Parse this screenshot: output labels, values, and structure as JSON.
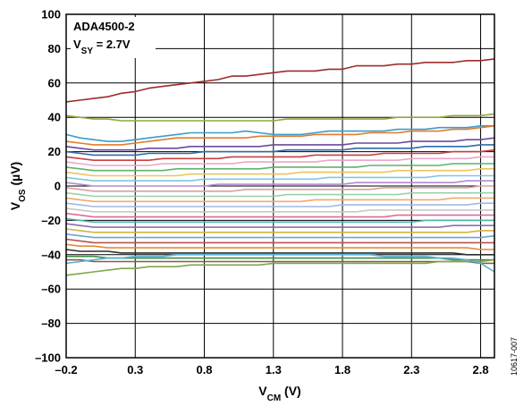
{
  "chart_data": {
    "type": "line",
    "title": "",
    "annotation": {
      "part": "ADA4500-2",
      "supply_label_main": "V",
      "supply_label_sub": "SY",
      "supply_label_rest": " = 2.7V"
    },
    "xlabel": {
      "main": "V",
      "sub": "CM",
      "rest": " (V)"
    },
    "ylabel": {
      "main": "V",
      "sub": "OS",
      "rest": " (µV)"
    },
    "xlim": [
      -0.2,
      2.9
    ],
    "ylim": [
      -100,
      100
    ],
    "xticks": [
      -0.2,
      0.3,
      0.8,
      1.3,
      1.8,
      2.3,
      2.8
    ],
    "xtick_labels": [
      "–0.2",
      "0.3",
      "0.8",
      "1.3",
      "1.8",
      "2.3",
      "2.8"
    ],
    "yticks": [
      -100,
      -80,
      -60,
      -40,
      -20,
      0,
      20,
      40,
      60,
      80,
      100
    ],
    "ytick_labels": [
      "–100",
      "–80",
      "–60",
      "–40",
      "–20",
      "0",
      "20",
      "40",
      "60",
      "80",
      "100"
    ],
    "grid": true,
    "x": [
      -0.2,
      -0.1,
      0.0,
      0.1,
      0.2,
      0.3,
      0.4,
      0.5,
      0.6,
      0.7,
      0.8,
      0.9,
      1.0,
      1.1,
      1.2,
      1.3,
      1.4,
      1.5,
      1.6,
      1.7,
      1.8,
      1.9,
      2.0,
      2.1,
      2.2,
      2.3,
      2.4,
      2.5,
      2.6,
      2.7,
      2.8,
      2.9
    ],
    "series": [
      {
        "color": "#9b2d2a",
        "values": [
          49,
          50,
          51,
          52,
          54,
          55,
          57,
          58,
          59,
          60,
          61,
          62,
          64,
          64,
          65,
          66,
          67,
          67,
          67,
          68,
          68,
          70,
          70,
          70,
          71,
          71,
          72,
          72,
          72,
          73,
          73,
          74
        ]
      },
      {
        "color": "#8bab3c",
        "values": [
          41,
          40,
          39,
          39,
          38,
          38,
          38,
          38,
          38,
          38,
          38,
          38,
          38,
          38,
          38,
          38,
          39,
          39,
          39,
          39,
          39,
          39,
          39,
          39,
          40,
          40,
          40,
          40,
          41,
          41,
          41,
          42
        ]
      },
      {
        "color": "#3a9cc9",
        "values": [
          30,
          28,
          27,
          26,
          26,
          27,
          28,
          29,
          30,
          31,
          31,
          31,
          31,
          32,
          31,
          30,
          30,
          30,
          31,
          32,
          32,
          32,
          32,
          32,
          33,
          33,
          33,
          34,
          34,
          34,
          35,
          35
        ]
      },
      {
        "color": "#e37b2c",
        "values": [
          26,
          25,
          24,
          24,
          24,
          25,
          26,
          27,
          28,
          28,
          28,
          28,
          28,
          28,
          29,
          29,
          29,
          29,
          30,
          30,
          30,
          30,
          31,
          31,
          31,
          32,
          32,
          32,
          33,
          33,
          34,
          35
        ]
      },
      {
        "color": "#6a4a9c",
        "values": [
          23,
          22,
          21,
          21,
          21,
          21,
          22,
          22,
          22,
          23,
          23,
          23,
          23,
          23,
          23,
          24,
          24,
          24,
          24,
          24,
          24,
          25,
          25,
          25,
          25,
          26,
          26,
          26,
          26,
          27,
          27,
          28
        ]
      },
      {
        "color": "#2e6ca8",
        "values": [
          20,
          19,
          18,
          18,
          18,
          18,
          19,
          19,
          19,
          19,
          20,
          20,
          20,
          20,
          20,
          20,
          21,
          21,
          21,
          21,
          21,
          22,
          22,
          22,
          22,
          22,
          23,
          23,
          23,
          23,
          24,
          24
        ]
      },
      {
        "color": "#c94040",
        "values": [
          17,
          16,
          15,
          15,
          15,
          15,
          15,
          16,
          16,
          16,
          16,
          16,
          17,
          17,
          17,
          17,
          17,
          17,
          18,
          18,
          18,
          18,
          18,
          19,
          19,
          19,
          19,
          19,
          20,
          20,
          20,
          21
        ]
      },
      {
        "color": "#e8a6c8",
        "values": [
          14,
          13,
          12,
          12,
          12,
          12,
          12,
          13,
          13,
          13,
          13,
          13,
          13,
          14,
          14,
          14,
          14,
          14,
          14,
          15,
          15,
          15,
          15,
          15,
          15,
          16,
          16,
          16,
          16,
          16,
          17,
          17
        ]
      },
      {
        "color": "#5fb36a",
        "values": [
          11,
          10,
          9,
          9,
          9,
          9,
          9,
          9,
          10,
          10,
          10,
          10,
          10,
          10,
          10,
          11,
          11,
          11,
          11,
          11,
          11,
          11,
          12,
          12,
          12,
          12,
          12,
          12,
          13,
          13,
          13,
          13
        ]
      },
      {
        "color": "#f0c35a",
        "values": [
          8,
          7,
          6,
          6,
          6,
          6,
          6,
          6,
          6,
          7,
          7,
          7,
          7,
          7,
          7,
          7,
          7,
          8,
          8,
          8,
          8,
          8,
          8,
          8,
          9,
          9,
          9,
          9,
          9,
          9,
          10,
          10
        ]
      },
      {
        "color": "#7ec8e3",
        "values": [
          5,
          4,
          3,
          3,
          3,
          3,
          3,
          3,
          3,
          3,
          4,
          4,
          4,
          4,
          4,
          4,
          4,
          4,
          4,
          5,
          5,
          5,
          5,
          5,
          5,
          5,
          5,
          6,
          6,
          6,
          6,
          6
        ]
      },
      {
        "color": "#b38bd6",
        "values": [
          2,
          1,
          0,
          0,
          0,
          0,
          0,
          0,
          0,
          0,
          0,
          1,
          1,
          1,
          1,
          1,
          1,
          1,
          1,
          1,
          1,
          2,
          2,
          2,
          2,
          2,
          2,
          2,
          2,
          3,
          3,
          3
        ]
      },
      {
        "color": "#d9a0a0",
        "values": [
          -1,
          -2,
          -3,
          -3,
          -3,
          -3,
          -3,
          -3,
          -3,
          -3,
          -3,
          -3,
          -3,
          -2,
          -2,
          -2,
          -2,
          -2,
          -2,
          -2,
          -2,
          -2,
          -2,
          -1,
          -1,
          -1,
          -1,
          -1,
          -1,
          -1,
          0,
          0
        ]
      },
      {
        "color": "#97d1a8",
        "values": [
          -4,
          -5,
          -6,
          -6,
          -6,
          -6,
          -6,
          -6,
          -6,
          -6,
          -6,
          -6,
          -6,
          -6,
          -6,
          -6,
          -5,
          -5,
          -5,
          -5,
          -5,
          -5,
          -5,
          -5,
          -5,
          -4,
          -4,
          -4,
          -4,
          -4,
          -4,
          -4
        ]
      },
      {
        "color": "#f3a86b",
        "values": [
          -7,
          -8,
          -9,
          -9,
          -9,
          -9,
          -9,
          -9,
          -9,
          -9,
          -9,
          -9,
          -9,
          -9,
          -9,
          -9,
          -9,
          -9,
          -8,
          -8,
          -8,
          -8,
          -8,
          -8,
          -8,
          -8,
          -8,
          -8,
          -7,
          -7,
          -7,
          -7
        ]
      },
      {
        "color": "#a2b9e0",
        "values": [
          -10,
          -11,
          -12,
          -12,
          -12,
          -12,
          -12,
          -12,
          -12,
          -12,
          -12,
          -12,
          -12,
          -12,
          -12,
          -12,
          -12,
          -12,
          -12,
          -12,
          -11,
          -11,
          -11,
          -11,
          -11,
          -11,
          -11,
          -11,
          -11,
          -11,
          -10,
          -10
        ]
      },
      {
        "color": "#c7c7c7",
        "values": [
          -13,
          -14,
          -15,
          -15,
          -15,
          -15,
          -15,
          -15,
          -15,
          -15,
          -15,
          -15,
          -15,
          -15,
          -15,
          -15,
          -15,
          -15,
          -15,
          -15,
          -15,
          -15,
          -14,
          -14,
          -14,
          -14,
          -14,
          -14,
          -14,
          -14,
          -14,
          -14
        ]
      },
      {
        "color": "#e06b9a",
        "values": [
          -16,
          -17,
          -18,
          -18,
          -18,
          -18,
          -18,
          -18,
          -18,
          -18,
          -18,
          -18,
          -18,
          -18,
          -18,
          -18,
          -18,
          -18,
          -18,
          -18,
          -18,
          -18,
          -18,
          -18,
          -17,
          -17,
          -17,
          -17,
          -17,
          -17,
          -17,
          -17
        ]
      },
      {
        "color": "#4bb5b0",
        "values": [
          -19,
          -20,
          -21,
          -21,
          -21,
          -21,
          -21,
          -21,
          -21,
          -21,
          -21,
          -21,
          -21,
          -21,
          -21,
          -21,
          -21,
          -21,
          -21,
          -21,
          -21,
          -21,
          -21,
          -21,
          -21,
          -21,
          -20,
          -20,
          -20,
          -20,
          -20,
          -20
        ]
      },
      {
        "color": "#8a6fb0",
        "values": [
          -22,
          -23,
          -24,
          -24,
          -24,
          -24,
          -24,
          -24,
          -24,
          -24,
          -24,
          -24,
          -24,
          -24,
          -24,
          -24,
          -24,
          -24,
          -24,
          -24,
          -24,
          -24,
          -24,
          -24,
          -24,
          -24,
          -24,
          -24,
          -23,
          -23,
          -23,
          -23
        ]
      },
      {
        "color": "#d7b33c",
        "values": [
          -25,
          -26,
          -27,
          -27,
          -27,
          -27,
          -27,
          -27,
          -27,
          -27,
          -27,
          -27,
          -27,
          -27,
          -27,
          -27,
          -27,
          -27,
          -27,
          -27,
          -27,
          -27,
          -27,
          -27,
          -27,
          -27,
          -27,
          -27,
          -27,
          -27,
          -26,
          -26
        ]
      },
      {
        "color": "#6fa3d9",
        "values": [
          -28,
          -29,
          -30,
          -30,
          -30,
          -30,
          -30,
          -30,
          -30,
          -30,
          -30,
          -30,
          -30,
          -30,
          -30,
          -30,
          -30,
          -30,
          -30,
          -30,
          -30,
          -30,
          -30,
          -30,
          -30,
          -30,
          -30,
          -30,
          -30,
          -30,
          -30,
          -29
        ]
      },
      {
        "color": "#b5534f",
        "values": [
          -31,
          -32,
          -33,
          -33,
          -33,
          -33,
          -33,
          -33,
          -33,
          -33,
          -33,
          -33,
          -33,
          -33,
          -33,
          -33,
          -33,
          -33,
          -33,
          -33,
          -33,
          -33,
          -33,
          -33,
          -33,
          -33,
          -33,
          -33,
          -33,
          -33,
          -33,
          -33
        ]
      },
      {
        "color": "#e58a3a",
        "values": [
          -34,
          -35,
          -35,
          -36,
          -36,
          -36,
          -36,
          -36,
          -36,
          -36,
          -36,
          -36,
          -36,
          -36,
          -36,
          -36,
          -36,
          -36,
          -36,
          -36,
          -36,
          -36,
          -36,
          -36,
          -36,
          -36,
          -36,
          -36,
          -36,
          -36,
          -37,
          -37
        ]
      },
      {
        "color": "#2f2f2f",
        "values": [
          -37,
          -38,
          -38,
          -38,
          -39,
          -39,
          -39,
          -39,
          -39,
          -39,
          -39,
          -39,
          -39,
          -39,
          -39,
          -39,
          -39,
          -39,
          -39,
          -39,
          -39,
          -39,
          -39,
          -39,
          -39,
          -39,
          -39,
          -39,
          -39,
          -40,
          -40,
          -40
        ]
      },
      {
        "color": "#3d8f4a",
        "values": [
          -41,
          -41,
          -41,
          -42,
          -42,
          -42,
          -42,
          -42,
          -42,
          -42,
          -42,
          -42,
          -42,
          -42,
          -42,
          -42,
          -42,
          -42,
          -42,
          -42,
          -42,
          -42,
          -42,
          -42,
          -42,
          -42,
          -42,
          -42,
          -43,
          -43,
          -43,
          -43
        ]
      },
      {
        "color": "#8b5a3c",
        "values": [
          -43,
          -43,
          -44,
          -44,
          -44,
          -44,
          -44,
          -44,
          -44,
          -44,
          -44,
          -44,
          -44,
          -44,
          -44,
          -44,
          -44,
          -44,
          -44,
          -44,
          -44,
          -44,
          -44,
          -44,
          -44,
          -44,
          -44,
          -44,
          -44,
          -44,
          -45,
          -45
        ]
      },
      {
        "color": "#7fa64a",
        "values": [
          -52,
          -51,
          -50,
          -49,
          -48,
          -48,
          -47,
          -47,
          -47,
          -46,
          -46,
          -46,
          -46,
          -46,
          -46,
          -45,
          -45,
          -45,
          -45,
          -45,
          -45,
          -45,
          -45,
          -45,
          -45,
          -45,
          -45,
          -44,
          -44,
          -44,
          -44,
          -43
        ]
      },
      {
        "color": "#5ab0d6",
        "values": [
          -45,
          -44,
          -43,
          -42,
          -42,
          -41,
          -41,
          -41,
          -40,
          -40,
          -40,
          -40,
          -40,
          -40,
          -40,
          -40,
          -40,
          -40,
          -40,
          -40,
          -40,
          -40,
          -40,
          -41,
          -41,
          -41,
          -41,
          -42,
          -42,
          -43,
          -45,
          -50
        ]
      }
    ]
  },
  "figure_code": "10617-007"
}
